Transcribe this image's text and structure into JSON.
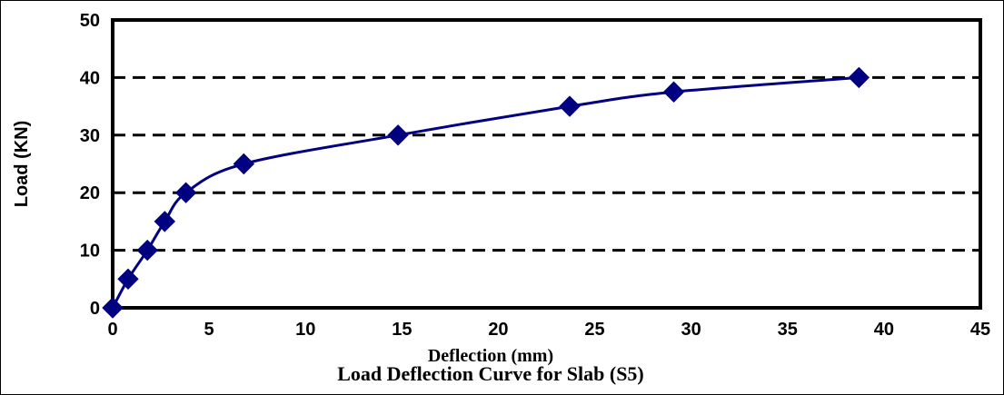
{
  "chart_data": {
    "type": "line",
    "title": "Load Deflection Curve for Slab (S5)",
    "xlabel": "Deflection (mm)",
    "ylabel": "Load (KN)",
    "xlim": [
      0,
      45
    ],
    "ylim": [
      0,
      50
    ],
    "xticks": [
      0,
      5,
      10,
      15,
      20,
      25,
      30,
      35,
      40,
      45
    ],
    "yticks": [
      0,
      10,
      20,
      30,
      40,
      50
    ],
    "grid": "horizontal dashed",
    "series": [
      {
        "color": "#000080",
        "marker": "diamond",
        "smooth": true,
        "x": [
          0,
          0.8,
          1.8,
          2.7,
          3.8,
          6.8,
          14.8,
          23.7,
          29.1,
          38.7
        ],
        "y": [
          0,
          5,
          10,
          15,
          20,
          25,
          30,
          35,
          37.5,
          40
        ]
      }
    ]
  }
}
